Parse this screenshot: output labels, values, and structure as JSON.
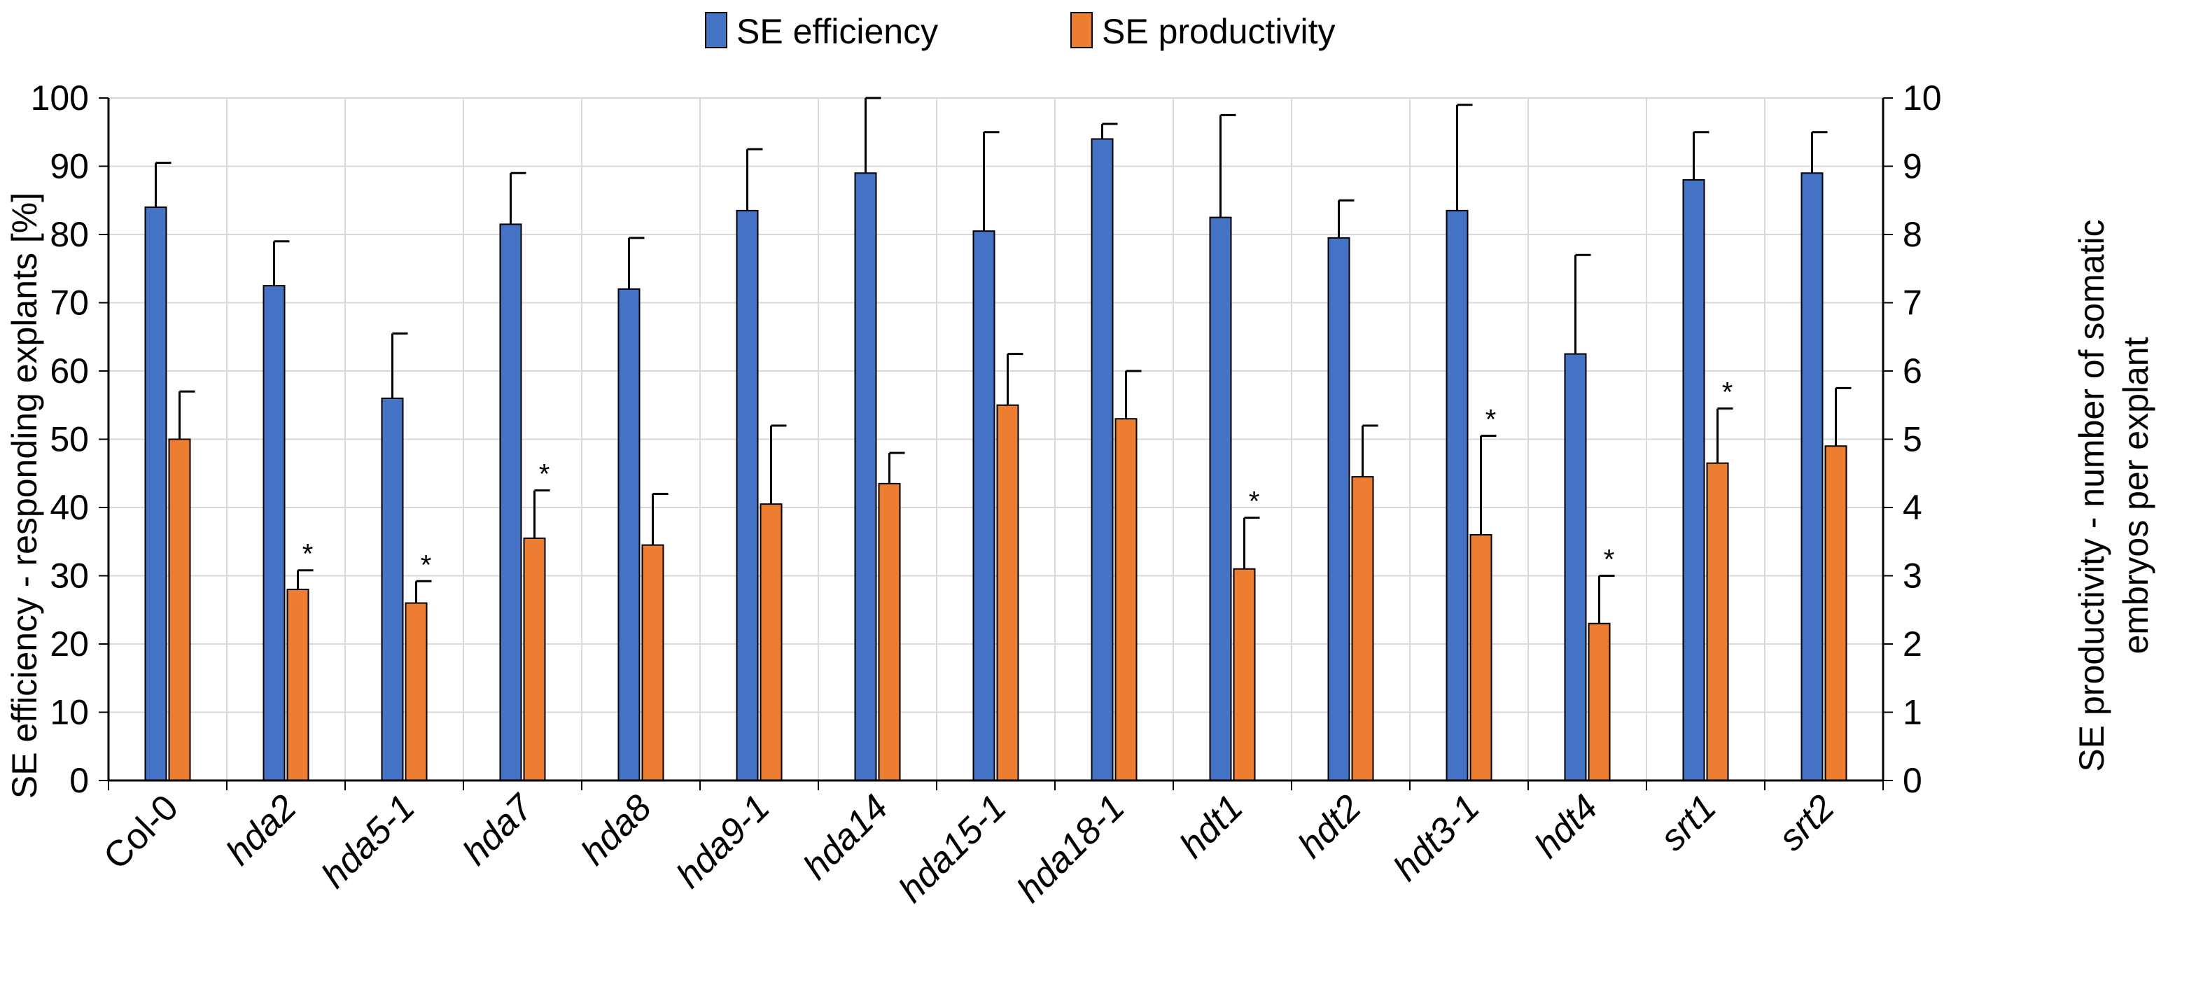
{
  "chart_data": {
    "type": "bar",
    "categories": [
      "Col-0",
      "hda2",
      "hda5-1",
      "hda7",
      "hda8",
      "hda9-1",
      "hda14",
      "hda15-1",
      "hda18-1",
      "hdt1",
      "hdt2",
      "hdt3-1",
      "hdt4",
      "srt1",
      "srt2"
    ],
    "italic_categories": [
      "hda2",
      "hda5-1",
      "hda7",
      "hda8",
      "hda9-1",
      "hda14",
      "hda15-1",
      "hda18-1",
      "hdt1",
      "hdt2",
      "hdt3-1",
      "hdt4",
      "srt1",
      "srt2"
    ],
    "series": [
      {
        "name": "SE efficiency",
        "axis": "left",
        "color": "#4472C4",
        "values": [
          84,
          72.5,
          56,
          81.5,
          72,
          83.5,
          89,
          80.5,
          94,
          82.5,
          79.5,
          83.5,
          62.5,
          88,
          89
        ],
        "errors": [
          6.5,
          6.5,
          9.5,
          7.5,
          7.5,
          9,
          11,
          14.5,
          2.2,
          15,
          5.5,
          15.5,
          14.5,
          7,
          6
        ],
        "significant": [
          false,
          false,
          false,
          false,
          false,
          false,
          false,
          false,
          false,
          false,
          false,
          false,
          false,
          false,
          false
        ]
      },
      {
        "name": "SE productivity",
        "axis": "right",
        "color": "#ED7D31",
        "values": [
          5.0,
          2.8,
          2.6,
          3.55,
          3.45,
          4.05,
          4.35,
          5.5,
          5.3,
          3.1,
          4.45,
          3.6,
          2.3,
          4.65,
          4.9
        ],
        "errors": [
          0.7,
          0.28,
          0.32,
          0.7,
          0.75,
          1.15,
          0.45,
          0.75,
          0.7,
          0.75,
          0.75,
          1.45,
          0.7,
          0.8,
          0.85
        ],
        "significant": [
          false,
          true,
          true,
          true,
          false,
          false,
          false,
          false,
          false,
          true,
          false,
          true,
          true,
          true,
          false
        ]
      }
    ],
    "significance_marker": "*",
    "ylabel": "SE efficiency - responding explants [%]",
    "ylabel2_line1": "SE productivity - number of somatic",
    "ylabel2_line2": "embryos per explant",
    "ylim": [
      0,
      100
    ],
    "ylim2": [
      0,
      10
    ],
    "yticks": [
      "0",
      "10",
      "20",
      "30",
      "40",
      "50",
      "60",
      "70",
      "80",
      "90",
      "100"
    ],
    "yticks2": [
      "0",
      "1",
      "2",
      "3",
      "4",
      "5",
      "6",
      "7",
      "8",
      "9",
      "10"
    ],
    "legend": {
      "position": "top-center"
    },
    "grid": true
  }
}
